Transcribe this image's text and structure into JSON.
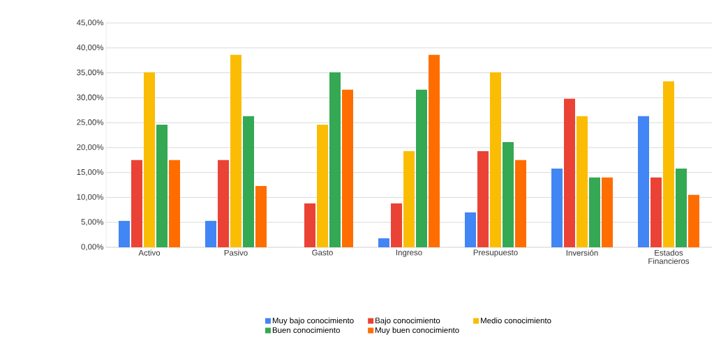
{
  "chart_data": {
    "type": "bar",
    "categories": [
      "Activo",
      "Pasivo",
      "Gasto",
      "Ingreso",
      "Presupuesto",
      "Inversión",
      "Estados Financieros"
    ],
    "series": [
      {
        "name": "Muy bajo conocimiento",
        "color": "#4285f4",
        "values": [
          5.3,
          5.3,
          0,
          1.8,
          7.0,
          15.8,
          26.3
        ]
      },
      {
        "name": "Bajo conocimiento",
        "color": "#ea4335",
        "values": [
          17.5,
          17.5,
          8.8,
          8.8,
          19.3,
          29.8,
          14.0
        ]
      },
      {
        "name": "Medio conocimiento",
        "color": "#fbbc04",
        "values": [
          35.1,
          38.6,
          24.6,
          19.3,
          35.1,
          26.3,
          33.3
        ]
      },
      {
        "name": "Buen conocimiento",
        "color": "#34a853",
        "values": [
          24.6,
          26.3,
          35.1,
          31.6,
          21.1,
          14.0,
          15.8
        ]
      },
      {
        "name": "Muy buen conocimiento",
        "color": "#ff6d01",
        "values": [
          17.5,
          12.3,
          31.6,
          38.6,
          17.5,
          14.0,
          10.5
        ]
      }
    ],
    "ylim": [
      0,
      45
    ],
    "yticks": [
      {
        "value": 0,
        "label": "0,00%"
      },
      {
        "value": 5,
        "label": "5,00%"
      },
      {
        "value": 10,
        "label": "10,00%"
      },
      {
        "value": 15,
        "label": "15,00%"
      },
      {
        "value": 20,
        "label": "20,00%"
      },
      {
        "value": 25,
        "label": "25,00%"
      },
      {
        "value": 30,
        "label": "30,00%"
      },
      {
        "value": 35,
        "label": "35,00%"
      },
      {
        "value": 40,
        "label": "40,00%"
      },
      {
        "value": 45,
        "label": "45,00%"
      }
    ],
    "grid": "y",
    "legend": "bottom"
  }
}
